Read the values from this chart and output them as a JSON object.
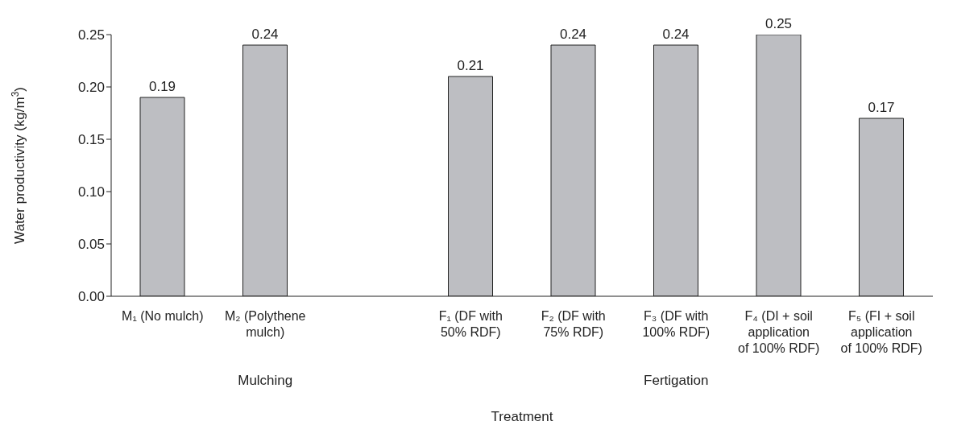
{
  "chart_data": {
    "type": "bar",
    "xlabel": "Treatment",
    "ylabel": "Water productivity (kg/m$^{3}$)",
    "categories": [
      "M₁ (No mulch)",
      "M₂ (Polythene mulch)",
      null,
      "F₁ (DF with 50% RDF)",
      "F₂ (DF with 75% RDF)",
      "F₃ (DF with 100% RDF)",
      "F₄ (DI + soil application of 100% RDF)",
      "F₅ (FI + soil application of 100% RDF)"
    ],
    "values": [
      0.19,
      0.24,
      null,
      0.21,
      0.24,
      0.24,
      0.25,
      0.17
    ],
    "color": "#bdbec2",
    "data_labels": true,
    "ylim": [
      0,
      0.25
    ],
    "yticks": [
      {
        "value": 0,
        "label": "0.00"
      },
      {
        "value": 0.05,
        "label": "0.05"
      },
      {
        "value": 0.1,
        "label": "0.10"
      },
      {
        "value": 0.15,
        "label": "0.15"
      },
      {
        "value": 0.2,
        "label": "0.20"
      },
      {
        "value": 0.25,
        "label": "0.25"
      }
    ],
    "grid": false,
    "annotations": [
      "Mulching",
      "Fertigation"
    ]
  }
}
